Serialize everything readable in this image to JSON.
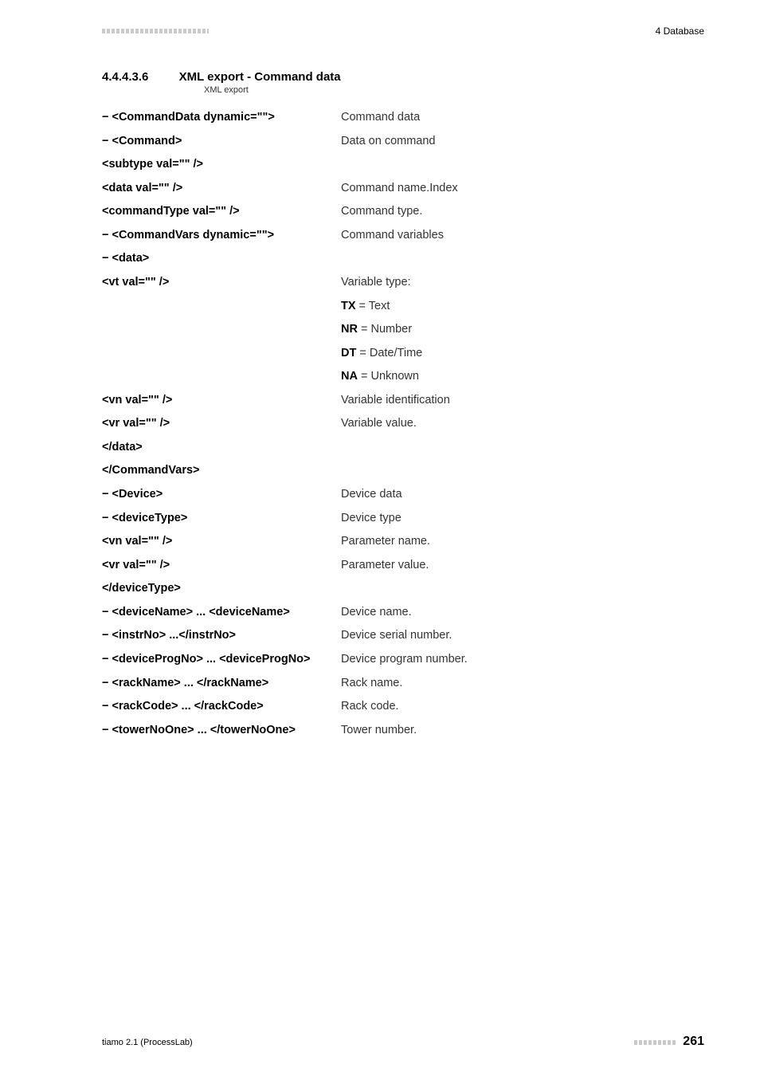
{
  "header": {
    "right": "4 Database"
  },
  "section": {
    "number": "4.4.4.3.6",
    "title": "XML export - Command data",
    "small_label": "XML export"
  },
  "rows": [
    {
      "left": "− <CommandData dynamic=\"\">",
      "right": "Command data",
      "rightClass": "bold-black"
    },
    {
      "left": "− <Command>",
      "right": "Data on command",
      "rightClass": "bold-black"
    },
    {
      "left": "<subtype val=\"\" />",
      "right": ""
    },
    {
      "left": "<data val=\"\" />",
      "right": "Command name.Index"
    },
    {
      "left": "<commandType val=\"\" />",
      "right": "Command type."
    },
    {
      "left": "− <CommandVars dynamic=\"\">",
      "right": "Command variables",
      "rightClass": "bold-black"
    },
    {
      "left": "− <data>",
      "right": ""
    },
    {
      "left": "<vt val=\"\" />",
      "right": "Variable type:"
    },
    {
      "left": "",
      "right": "",
      "code": "TX",
      "after": " = Text"
    },
    {
      "left": "",
      "right": "",
      "code": "NR",
      "after": " = Number"
    },
    {
      "left": "",
      "right": "",
      "code": "DT",
      "after": " = Date/Time"
    },
    {
      "left": "",
      "right": "",
      "code": "NA",
      "after": " = Unknown"
    },
    {
      "left": "<vn val=\"\" />",
      "right": "Variable identification"
    },
    {
      "left": "<vr val=\"\" />",
      "right": "Variable value."
    },
    {
      "left": "</data>",
      "right": ""
    },
    {
      "left": "</CommandVars>",
      "right": ""
    },
    {
      "left": "− <Device>",
      "right": "Device data",
      "rightClass": "bold-black"
    },
    {
      "left": "− <deviceType>",
      "right": "Device type"
    },
    {
      "left": "<vn val=\"\" />",
      "right": "Parameter name."
    },
    {
      "left": "<vr val=\"\" />",
      "right": "Parameter value."
    },
    {
      "left": "</deviceType>",
      "right": ""
    },
    {
      "left": "− <deviceName> ... <deviceName>",
      "right": "Device name."
    },
    {
      "left": "− <instrNo> ...</instrNo>",
      "right": "Device serial number."
    },
    {
      "left": "− <deviceProgNo> ... <deviceProgNo>",
      "right": "Device program number."
    },
    {
      "left": "− <rackName> ... </rackName>",
      "right": "Rack name."
    },
    {
      "left": "− <rackCode> ... </rackCode>",
      "right": "Rack code."
    },
    {
      "left": "− <towerNoOne> ... </towerNoOne>",
      "right": "Tower number."
    }
  ],
  "footer": {
    "left": "tiamo 2.1 (ProcessLab)",
    "page": "261"
  }
}
